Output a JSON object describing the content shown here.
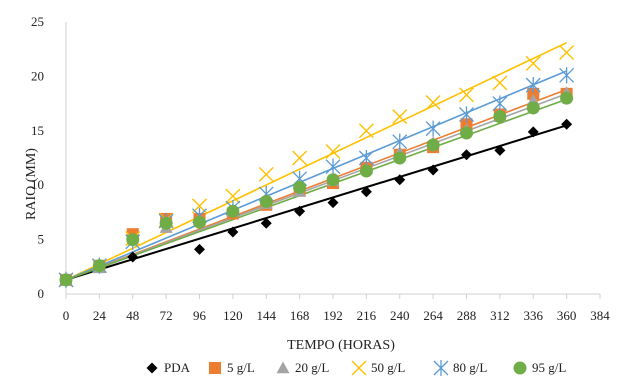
{
  "chart_data": {
    "type": "scatter",
    "title": "",
    "xlabel": "TEMPO (HORAS)",
    "ylabel": "RAIO (MM)",
    "xlim": [
      0,
      384
    ],
    "ylim": [
      0,
      25
    ],
    "x_ticks": [
      0,
      24,
      48,
      72,
      96,
      120,
      144,
      168,
      192,
      216,
      240,
      264,
      288,
      312,
      336,
      360,
      384
    ],
    "y_ticks": [
      0,
      5,
      10,
      15,
      20,
      25
    ],
    "grid": false,
    "legend_position": "bottom",
    "trendlines": "linear",
    "x": [
      0,
      24,
      48,
      72,
      96,
      120,
      144,
      168,
      192,
      216,
      240,
      264,
      288,
      312,
      336,
      360
    ],
    "series": [
      {
        "name": "PDA",
        "marker": "diamond",
        "color": "#000000",
        "values": [
          1.3,
          2.6,
          3.4,
          6.8,
          4.1,
          5.7,
          6.5,
          7.6,
          8.4,
          9.4,
          10.5,
          11.4,
          12.8,
          13.2,
          14.9,
          15.6
        ],
        "trend": [
          1.3,
          15.5
        ]
      },
      {
        "name": "5 g/L",
        "marker": "square",
        "color": "#ED7D31",
        "values": [
          1.3,
          2.6,
          5.5,
          6.9,
          6.9,
          7.4,
          8.2,
          9.6,
          10.2,
          11.6,
          12.8,
          13.5,
          15.6,
          16.5,
          18.4,
          18.4
        ],
        "trend": [
          1.3,
          18.8
        ]
      },
      {
        "name": "20 g/L",
        "marker": "triangle",
        "color": "#A5A5A5",
        "values": [
          1.3,
          2.4,
          5.0,
          6.1,
          6.8,
          7.6,
          8.3,
          9.4,
          10.4,
          11.5,
          13.0,
          13.9,
          15.1,
          16.3,
          17.8,
          18.5
        ],
        "trend": [
          1.3,
          18.4
        ]
      },
      {
        "name": "50 g/L",
        "marker": "x",
        "color": "#FFC000",
        "values": [
          1.3,
          2.6,
          5.1,
          6.8,
          8.1,
          9.0,
          11.0,
          12.5,
          13.1,
          15.0,
          16.3,
          17.6,
          18.3,
          19.4,
          21.2,
          22.2
        ],
        "trend": [
          1.3,
          23.1
        ]
      },
      {
        "name": "80 g/L",
        "marker": "star",
        "color": "#5B9BD5",
        "values": [
          1.3,
          2.6,
          4.8,
          6.7,
          7.2,
          7.9,
          9.2,
          10.6,
          11.7,
          12.5,
          14.0,
          15.2,
          16.5,
          17.5,
          19.2,
          20.1
        ],
        "trend": [
          1.3,
          20.5
        ]
      },
      {
        "name": "95 g/L",
        "marker": "circle",
        "color": "#70AD47",
        "values": [
          1.3,
          2.6,
          5.0,
          6.5,
          6.6,
          7.6,
          8.5,
          9.8,
          10.5,
          11.3,
          12.5,
          13.7,
          14.8,
          16.3,
          17.1,
          18.0
        ],
        "trend": [
          1.3,
          17.9
        ]
      }
    ]
  }
}
